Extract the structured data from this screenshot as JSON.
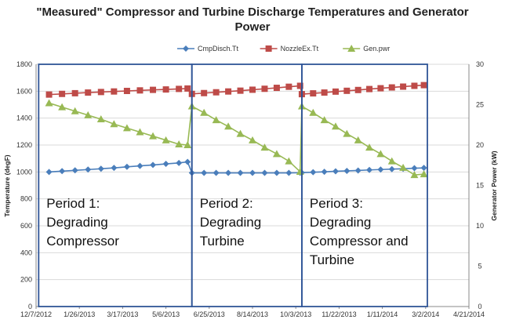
{
  "chart_data": {
    "type": "line",
    "title_lines": [
      "\"Measured\" Compressor and Turbine Discharge Temperatures and Generator",
      "Power"
    ],
    "ylabel": "Temperature (degF)",
    "y2label": "Generator Power (kW)",
    "ylim": [
      0,
      1800
    ],
    "y2lim": [
      0,
      30
    ],
    "yticks": [
      "0",
      "200",
      "400",
      "600",
      "800",
      "1000",
      "1200",
      "1400",
      "1600",
      "1800"
    ],
    "y2ticks": [
      "0",
      "5",
      "10",
      "15",
      "20",
      "25",
      "30"
    ],
    "xticks": [
      "12/7/2012",
      "1/26/2013",
      "3/17/2013",
      "5/6/2013",
      "6/25/2013",
      "8/14/2013",
      "10/3/2013",
      "11/22/2013",
      "1/11/2014",
      "3/2/2014",
      "4/21/2014"
    ],
    "x_day_range": [
      0,
      500
    ],
    "grid": "horizontal",
    "legend_position": "top",
    "series": [
      {
        "name": "CmpDisch.Tt",
        "axis": "left",
        "color": "#4a7ebb",
        "marker": "diamond",
        "x": [
          15,
          30,
          45,
          60,
          75,
          90,
          105,
          120,
          135,
          150,
          165,
          175,
          180,
          194,
          208,
          222,
          236,
          250,
          264,
          278,
          292,
          305,
          307,
          320,
          333,
          346,
          359,
          372,
          385,
          398,
          411,
          424,
          437,
          448
        ],
        "values": [
          1000,
          1006,
          1012,
          1018,
          1024,
          1030,
          1038,
          1045,
          1052,
          1060,
          1067,
          1075,
          993,
          993,
          993,
          993,
          993,
          993,
          993,
          993,
          993,
          994,
          995,
          998,
          1001,
          1005,
          1008,
          1011,
          1015,
          1018,
          1021,
          1024,
          1028,
          1030
        ]
      },
      {
        "name": "NozzleEx.Tt",
        "axis": "left",
        "color": "#be4b48",
        "marker": "square",
        "x": [
          15,
          30,
          45,
          60,
          75,
          90,
          105,
          120,
          135,
          150,
          165,
          175,
          180,
          194,
          208,
          222,
          236,
          250,
          264,
          278,
          292,
          305,
          307,
          320,
          333,
          346,
          359,
          372,
          385,
          398,
          411,
          424,
          437,
          448
        ],
        "values": [
          1575,
          1580,
          1585,
          1590,
          1594,
          1598,
          1602,
          1606,
          1610,
          1613,
          1617,
          1620,
          1580,
          1586,
          1592,
          1598,
          1604,
          1611,
          1618,
          1625,
          1633,
          1640,
          1578,
          1584,
          1590,
          1597,
          1603,
          1609,
          1616,
          1622,
          1628,
          1634,
          1640,
          1645
        ]
      },
      {
        "name": "Gen.pwr",
        "axis": "right",
        "color": "#98b954",
        "marker": "triangle",
        "x": [
          15,
          30,
          45,
          60,
          75,
          90,
          105,
          120,
          135,
          150,
          165,
          175,
          180,
          194,
          208,
          222,
          236,
          250,
          264,
          278,
          292,
          305,
          307,
          320,
          333,
          346,
          359,
          372,
          385,
          398,
          411,
          424,
          437,
          448
        ],
        "values": [
          25.2,
          24.7,
          24.2,
          23.7,
          23.2,
          22.6,
          22.1,
          21.6,
          21.1,
          20.6,
          20.1,
          20.0,
          24.8,
          24.0,
          23.1,
          22.3,
          21.4,
          20.6,
          19.7,
          18.9,
          18.0,
          16.7,
          24.8,
          24.0,
          23.1,
          22.3,
          21.4,
          20.6,
          19.7,
          18.9,
          18.0,
          17.2,
          16.3,
          16.4
        ]
      }
    ],
    "periods": [
      {
        "x_range": [
          3,
          180
        ],
        "lines": [
          "Period 1:",
          "Degrading",
          "Compressor"
        ]
      },
      {
        "x_range": [
          180,
          307
        ],
        "lines": [
          "Period 2:",
          "Degrading",
          "Turbine"
        ]
      },
      {
        "x_range": [
          307,
          452
        ],
        "lines": [
          "Period 3:",
          "Degrading",
          "Compressor and",
          "Turbine"
        ]
      }
    ]
  }
}
